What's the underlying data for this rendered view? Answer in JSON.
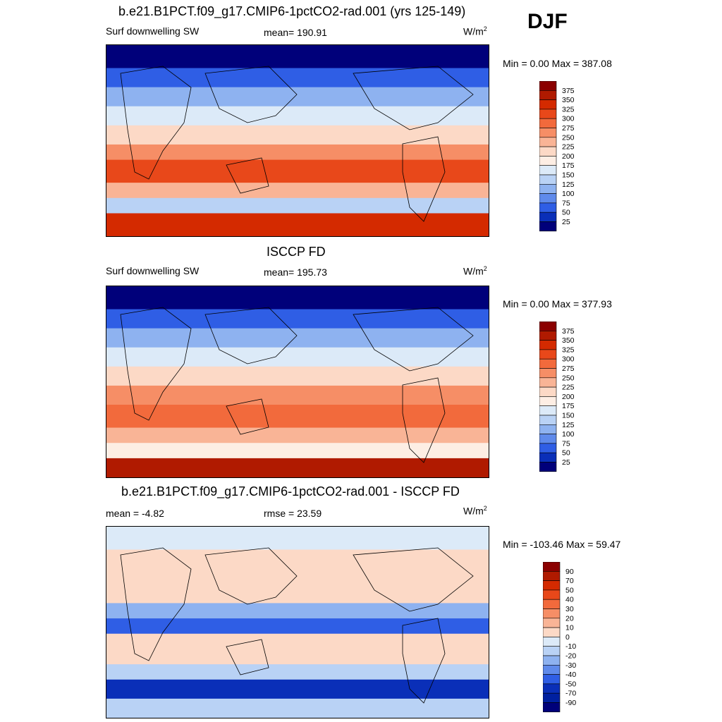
{
  "season": "DJF",
  "panels": [
    {
      "id": "model",
      "title": "b.e21.B1PCT.f09_g17.CMIP6-1pctCO2-rad.001 (yrs 125-149)",
      "left_label": "Surf downwelling SW",
      "center_label": "mean= 190.91",
      "units": "W/m",
      "units_sup": "2",
      "minmax": "Min =   0.00 Max = 387.08"
    },
    {
      "id": "obs",
      "title": "ISCCP FD",
      "left_label": "Surf downwelling SW",
      "center_label": "mean= 195.73",
      "units": "W/m",
      "units_sup": "2",
      "minmax": "Min =   0.00 Max = 377.93"
    },
    {
      "id": "diff",
      "title": "b.e21.B1PCT.f09_g17.CMIP6-1pctCO2-rad.001 - ISCCP FD",
      "left_label": "mean =  -4.82",
      "center_label": "rmse =  23.59",
      "units": "W/m",
      "units_sup": "2",
      "minmax": "Min = -103.46 Max =  59.47"
    }
  ],
  "colorbars": {
    "sw": {
      "labels": [
        "375",
        "350",
        "325",
        "300",
        "275",
        "250",
        "225",
        "200",
        "175",
        "150",
        "125",
        "100",
        "75",
        "50",
        "25"
      ],
      "colors": [
        "#8b0000",
        "#b01a00",
        "#d42a00",
        "#e8481a",
        "#f26a3c",
        "#f68e66",
        "#f9b496",
        "#fcd9c6",
        "#fdeee4",
        "#dceaf8",
        "#b9d2f5",
        "#8eb2f0",
        "#5f8aeb",
        "#2f5ee5",
        "#0a2fb8",
        "#00007a"
      ]
    },
    "diff": {
      "labels": [
        "90",
        "70",
        "50",
        "40",
        "30",
        "20",
        "10",
        "0",
        "-10",
        "-20",
        "-30",
        "-40",
        "-50",
        "-70",
        "-90"
      ],
      "colors": [
        "#8b0000",
        "#b01a00",
        "#d42a00",
        "#e8481a",
        "#f26a3c",
        "#f68e66",
        "#f9b496",
        "#fcd9c6",
        "#dceaf8",
        "#b9d2f5",
        "#8eb2f0",
        "#5f8aeb",
        "#2f5ee5",
        "#0a2fb8",
        "#0020a0",
        "#00007a"
      ]
    }
  },
  "chart_data": [
    {
      "type": "heatmap",
      "title": "b.e21.B1PCT.f09_g17.CMIP6-1pctCO2-rad.001 (yrs 125-149)",
      "variable": "Surf downwelling SW",
      "units": "W/m2",
      "season": "DJF",
      "mean": 190.91,
      "min": 0.0,
      "max": 387.08,
      "contour_levels": [
        25,
        50,
        75,
        100,
        125,
        150,
        175,
        200,
        225,
        250,
        275,
        300,
        325,
        350,
        375
      ]
    },
    {
      "type": "heatmap",
      "title": "ISCCP FD",
      "variable": "Surf downwelling SW",
      "units": "W/m2",
      "season": "DJF",
      "mean": 195.73,
      "min": 0.0,
      "max": 377.93,
      "contour_levels": [
        25,
        50,
        75,
        100,
        125,
        150,
        175,
        200,
        225,
        250,
        275,
        300,
        325,
        350,
        375
      ]
    },
    {
      "type": "heatmap",
      "title": "b.e21.B1PCT.f09_g17.CMIP6-1pctCO2-rad.001 - ISCCP FD",
      "units": "W/m2",
      "season": "DJF",
      "mean": -4.82,
      "rmse": 23.59,
      "min": -103.46,
      "max": 59.47,
      "contour_levels": [
        -90,
        -70,
        -50,
        -40,
        -30,
        -20,
        -10,
        0,
        10,
        20,
        30,
        40,
        50,
        70,
        90
      ]
    }
  ]
}
